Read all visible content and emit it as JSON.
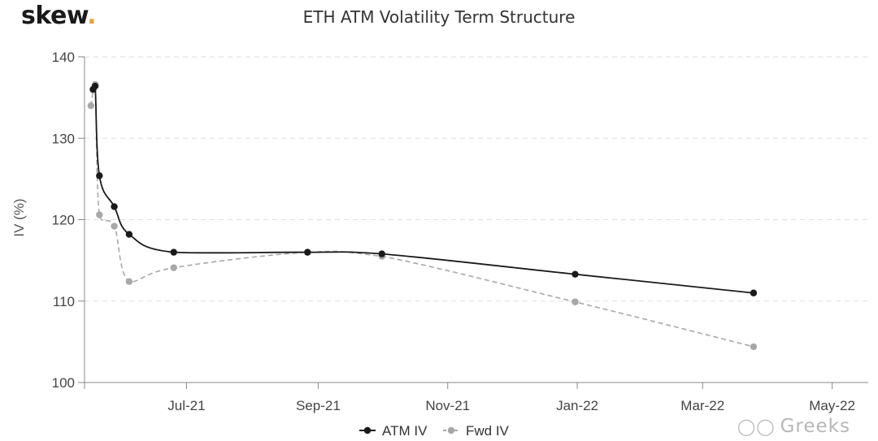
{
  "brand": {
    "logo_text": "skew",
    "logo_dot": "."
  },
  "watermark": {
    "icon": "wechat-icon",
    "text": "Greeks"
  },
  "chart_data": {
    "type": "line",
    "title": "ETH ATM Volatility Term Structure",
    "xlabel": "",
    "ylabel": "IV (%)",
    "ylim": [
      100,
      140
    ],
    "yticks": [
      100,
      110,
      120,
      130,
      140
    ],
    "xlim": [
      "2021-05-14",
      "2022-05-18"
    ],
    "xticks": [
      {
        "date": "2021-07-01",
        "label": "Jul-21"
      },
      {
        "date": "2021-09-01",
        "label": "Sep-21"
      },
      {
        "date": "2021-11-01",
        "label": "Nov-21"
      },
      {
        "date": "2022-01-01",
        "label": "Jan-22"
      },
      {
        "date": "2022-03-01",
        "label": "Mar-22"
      },
      {
        "date": "2022-05-01",
        "label": "May-22"
      }
    ],
    "grid": "horizontal-dashed",
    "legend_position": "bottom-center",
    "series": [
      {
        "name": "ATM IV",
        "color": "#1a1a1a",
        "dash": false,
        "points": [
          {
            "x": "2021-05-18",
            "y": 136.0
          },
          {
            "x": "2021-05-19",
            "y": 136.4
          },
          {
            "x": "2021-05-21",
            "y": 125.4
          },
          {
            "x": "2021-05-28",
            "y": 121.6
          },
          {
            "x": "2021-06-04",
            "y": 118.2
          },
          {
            "x": "2021-06-25",
            "y": 116.0
          },
          {
            "x": "2021-08-27",
            "y": 116.0
          },
          {
            "x": "2021-10-01",
            "y": 115.8
          },
          {
            "x": "2021-12-31",
            "y": 113.3
          },
          {
            "x": "2022-03-25",
            "y": 111.0
          }
        ]
      },
      {
        "name": "Fwd IV",
        "color": "#a8a8a8",
        "dash": true,
        "points": [
          {
            "x": "2021-05-17",
            "y": 134.0
          },
          {
            "x": "2021-05-19",
            "y": 136.6
          },
          {
            "x": "2021-05-21",
            "y": 120.6
          },
          {
            "x": "2021-05-28",
            "y": 119.2
          },
          {
            "x": "2021-06-04",
            "y": 112.4
          },
          {
            "x": "2021-06-25",
            "y": 114.1
          },
          {
            "x": "2021-08-27",
            "y": 116.0
          },
          {
            "x": "2021-10-01",
            "y": 115.5
          },
          {
            "x": "2021-12-31",
            "y": 109.9
          },
          {
            "x": "2022-03-25",
            "y": 104.4
          }
        ]
      }
    ]
  }
}
